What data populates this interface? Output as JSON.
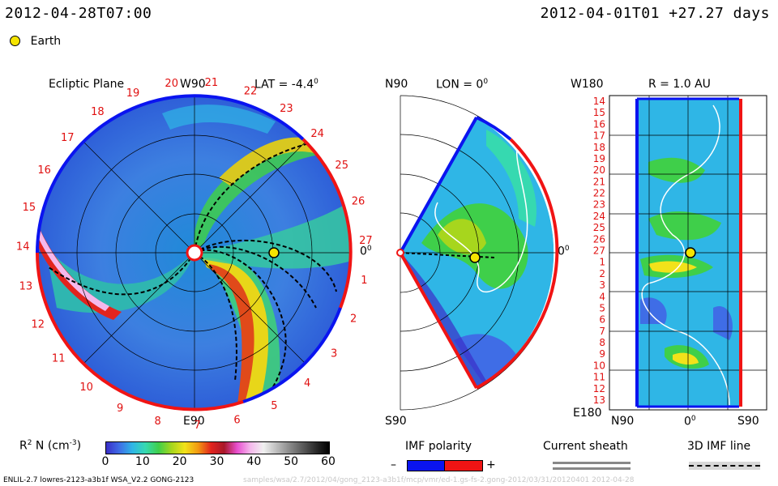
{
  "header": {
    "left_time": "2012-04-28T07:00",
    "right_time": "2012-04-01T01 +27.27 days"
  },
  "legend": {
    "earth_label": "Earth",
    "earth_color": "#f5e400"
  },
  "panels": {
    "ecliptic": {
      "title": "Ecliptic Plane",
      "top_label": "W90",
      "lat_label": "LAT = -4.4",
      "lat_sup": "0",
      "bottom_label": "E90",
      "right_label": "0",
      "right_sup": "0",
      "rotation_numbers": [
        "1",
        "2",
        "3",
        "4",
        "5",
        "6",
        "7",
        "8",
        "9",
        "10",
        "11",
        "12",
        "13",
        "14",
        "15",
        "16",
        "17",
        "18",
        "19",
        "20",
        "21",
        "22",
        "23",
        "24",
        "25",
        "26",
        "27"
      ]
    },
    "meridional": {
      "top_left": "N90",
      "lon_label": "LON = 0",
      "lon_sup": "0",
      "bottom_left": "S90",
      "right_label": "0",
      "right_sup": "0"
    },
    "radial": {
      "top_left": "W180",
      "r_label": "R = 1.0 AU",
      "bottom_left": "E180",
      "bottom_n": "N90",
      "bottom_mid": "0",
      "bottom_mid_sup": "0",
      "bottom_s": "S90",
      "left_ticks": [
        "14",
        "15",
        "16",
        "17",
        "18",
        "19",
        "20",
        "21",
        "22",
        "23",
        "24",
        "25",
        "26",
        "27",
        "1",
        "2",
        "3",
        "4",
        "5",
        "6",
        "7",
        "8",
        "9",
        "10",
        "11",
        "12",
        "13"
      ]
    }
  },
  "colorbar": {
    "label": "R",
    "label_sup": "2",
    "label_rest": " N (cm",
    "label_sup2": "-3",
    "label_end": ")",
    "ticks": [
      "0",
      "10",
      "20",
      "30",
      "40",
      "50",
      "60"
    ],
    "colors": [
      "#3a2fc8",
      "#3f6de6",
      "#2fb6e6",
      "#36d9b0",
      "#3fcf4a",
      "#a7d61d",
      "#f2e21a",
      "#f29a12",
      "#e2241e",
      "#a8182a",
      "#e850d0",
      "#f5b8ec",
      "#f0f0f0",
      "#bdbdbd",
      "#8a8a8a",
      "#5a5a5a",
      "#2a2a2a",
      "#000000"
    ]
  },
  "imf": {
    "title": "IMF polarity",
    "minus": "–",
    "plus": "+",
    "neg_color": "#0a14f0",
    "pos_color": "#f01414"
  },
  "current_sheath": {
    "title": "Current sheath"
  },
  "imf_line": {
    "title": "3D IMF line"
  },
  "footer": {
    "left": "ENLIL-2.7 lowres-2123-a3b1f WSA_V2.2 GONG-2123",
    "right": "samples/wsa/2.7/2012/04/gong_2123-a3b1f/mcp/vmr/ed-1.gs-fs-2.gong-2012/03/31/20120401    2012-04-28"
  }
}
